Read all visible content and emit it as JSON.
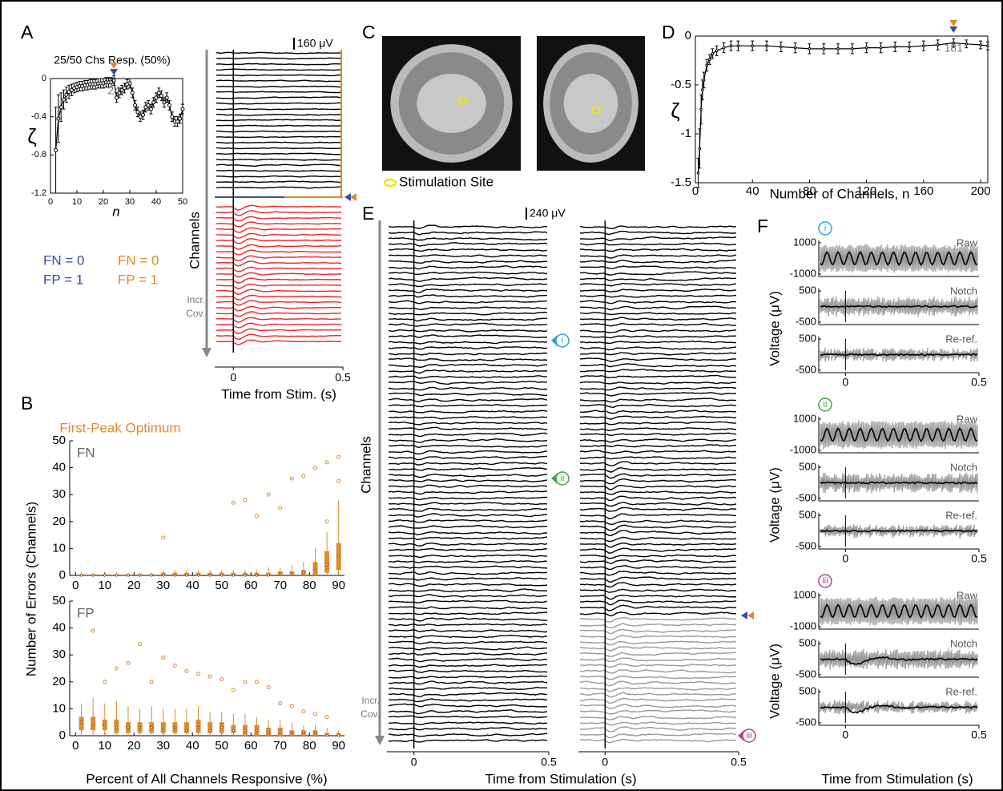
{
  "chart_data": [
    {
      "type": "line",
      "panel": "A",
      "title": "25/50 Chs Resp. (50%)",
      "x_label": "n",
      "y_label": "ζ",
      "x": [
        2,
        3,
        4,
        5,
        6,
        7,
        8,
        9,
        10,
        11,
        12,
        13,
        14,
        15,
        16,
        17,
        18,
        19,
        20,
        21,
        22,
        23,
        24,
        25,
        26,
        27,
        28,
        29,
        30,
        31,
        32,
        33,
        34,
        35,
        36,
        37,
        38,
        39,
        40,
        41,
        42,
        43,
        44,
        45,
        46,
        47,
        48,
        49,
        50
      ],
      "series": [
        {
          "color": "#000000",
          "values": [
            -0.75,
            -0.42,
            -0.3,
            -0.22,
            -0.17,
            -0.14,
            -0.12,
            -0.1,
            -0.09,
            -0.08,
            -0.08,
            -0.07,
            -0.07,
            -0.06,
            -0.06,
            -0.06,
            -0.05,
            -0.05,
            -0.05,
            -0.04,
            -0.04,
            -0.04,
            -0.02,
            -0.2,
            -0.15,
            -0.12,
            -0.1,
            -0.06,
            -0.05,
            -0.15,
            -0.28,
            -0.35,
            -0.4,
            -0.38,
            -0.3,
            -0.28,
            -0.32,
            -0.25,
            -0.2,
            -0.15,
            -0.18,
            -0.25,
            -0.2,
            -0.28,
            -0.4,
            -0.45,
            -0.45,
            -0.42,
            -0.32
          ],
          "errors": [
            0.45,
            0.25,
            0.15,
            0.1,
            0.08,
            0.07,
            0.06,
            0.05,
            0.05,
            0.05,
            0.05,
            0.05,
            0.05,
            0.05,
            0.05,
            0.05,
            0.05,
            0.05,
            0.05,
            0.05,
            0.05,
            0.05,
            0.05,
            0.05,
            0.05,
            0.05,
            0.05,
            0.05,
            0.05,
            0.05,
            0.05,
            0.05,
            0.05,
            0.05,
            0.05,
            0.05,
            0.05,
            0.05,
            0.05,
            0.05,
            0.05,
            0.05,
            0.05,
            0.05,
            0.05,
            0.05,
            0.05,
            0.05,
            0.05
          ]
        }
      ],
      "xlim": [
        0,
        50
      ],
      "xticks": [
        0,
        10,
        20,
        30,
        40,
        50
      ],
      "ylim": [
        -1.2,
        0
      ],
      "yticks": [
        -1.2,
        -0.8,
        -0.4,
        0
      ],
      "annotations": [
        {
          "text": "24",
          "x": 24
        }
      ],
      "marker_colors": [
        "#e08a2b",
        "#3a4fa0"
      ]
    },
    {
      "type": "traces",
      "panel": "A",
      "scale_label": "160 μV",
      "y_label": "Channels",
      "cov_label": [
        "Incr.",
        "Cov."
      ],
      "x_label": "Time from Stim. (s)",
      "xlim": [
        -0.085,
        0.5
      ],
      "xticks": [
        0,
        0.5
      ],
      "colors": [
        "#000000",
        "#e8262a"
      ],
      "marker_colors": [
        "#3a4fa0",
        "#e08a2b"
      ],
      "legend": [
        {
          "color": "#3a4fa0",
          "entries": [
            "FN = 0",
            "FP = 1"
          ]
        },
        {
          "color": "#e08a2b",
          "entries": [
            "FN = 0",
            "FP = 1"
          ]
        }
      ]
    },
    {
      "type": "box",
      "panel": "B",
      "title": "First-Peak Optimum",
      "x_label": "Percent of All Channels Responsive (%)",
      "y_label": "Number of Errors (Channels)",
      "color": "#e08a2b",
      "x": [
        2,
        6,
        10,
        14,
        18,
        22,
        26,
        30,
        34,
        38,
        42,
        46,
        50,
        54,
        58,
        62,
        66,
        70,
        74,
        78,
        82,
        86,
        90
      ],
      "xlim": [
        -2,
        92
      ],
      "xticks": [
        0,
        10,
        20,
        30,
        40,
        50,
        60,
        70,
        80,
        90
      ],
      "ylim": [
        0,
        50
      ],
      "yticks": [
        0,
        10,
        20,
        30,
        40,
        50
      ],
      "subplots": [
        {
          "label": "FN",
          "median": [
            0,
            0,
            0,
            0,
            0,
            0,
            0,
            0,
            0,
            0,
            0,
            0,
            0,
            0,
            0,
            0,
            0,
            0.5,
            0.5,
            1,
            2,
            4,
            7
          ],
          "q1": [
            0,
            0,
            0,
            0,
            0,
            0,
            0,
            0,
            0,
            0,
            0,
            0,
            0,
            0,
            0,
            0,
            0,
            0,
            0,
            0,
            0,
            1,
            2
          ],
          "q3": [
            0.5,
            0.5,
            0.5,
            0.5,
            0.5,
            0.5,
            0.5,
            1,
            1,
            1,
            1,
            1,
            1,
            1,
            1,
            1,
            1,
            1.5,
            1.5,
            2,
            5,
            9,
            12
          ],
          "whislo": [
            0,
            0,
            0,
            0,
            0,
            0,
            0,
            0,
            0,
            0,
            0,
            0,
            0,
            0,
            0,
            0,
            0,
            0,
            0,
            0,
            0,
            0,
            0
          ],
          "whishi": [
            1,
            1,
            1,
            1,
            1,
            1,
            1,
            2,
            2,
            2,
            2,
            2,
            2,
            2,
            2,
            2,
            3,
            3,
            4,
            5,
            10,
            16,
            28
          ],
          "outlier_x": [
            30,
            54,
            58,
            62,
            66,
            70,
            74,
            78,
            82,
            86,
            90,
            86,
            90
          ],
          "outlier_y": [
            14,
            27,
            28,
            22,
            30,
            25,
            36,
            37,
            40,
            42,
            44,
            20,
            35
          ]
        },
        {
          "label": "FP",
          "median": [
            5,
            4,
            4,
            3,
            3,
            3,
            3,
            2,
            3,
            2,
            3,
            2,
            3,
            2,
            2,
            2,
            1,
            1,
            1,
            1,
            1,
            0,
            0
          ],
          "q1": [
            2,
            2,
            2,
            1,
            1,
            1,
            1,
            1,
            1,
            1,
            1,
            1,
            1,
            1,
            0,
            0,
            0,
            0,
            0,
            0,
            0,
            0,
            0
          ],
          "q3": [
            7,
            7,
            6,
            6,
            5,
            5,
            5,
            5,
            5,
            5,
            6,
            5,
            5,
            4,
            4,
            4,
            3,
            3,
            2,
            2,
            2,
            1,
            1
          ],
          "whislo": [
            0,
            0,
            0,
            0,
            0,
            0,
            0,
            0,
            0,
            0,
            0,
            0,
            0,
            0,
            0,
            0,
            0,
            0,
            0,
            0,
            0,
            0,
            0
          ],
          "whishi": [
            12,
            14,
            12,
            13,
            11,
            10,
            11,
            10,
            10,
            10,
            11,
            9,
            9,
            8,
            8,
            7,
            6,
            6,
            5,
            4,
            4,
            3,
            2
          ],
          "outlier_x": [
            6,
            10,
            14,
            18,
            22,
            26,
            30,
            34,
            38,
            42,
            46,
            50,
            54,
            58,
            62,
            66,
            70,
            74,
            78,
            82,
            86
          ],
          "outlier_y": [
            39,
            20,
            25,
            27,
            34,
            20,
            29,
            26,
            24,
            23,
            22,
            21,
            17,
            20,
            20,
            18,
            12,
            11,
            9,
            8,
            7
          ]
        }
      ]
    },
    {
      "type": "image",
      "panel": "C",
      "caption": "Stimulation Site",
      "site_color": "#f2e600"
    },
    {
      "type": "line",
      "panel": "D",
      "x_label": "Number of Channels, n",
      "y_label": "ζ",
      "x": [
        2,
        3,
        4,
        5,
        6,
        8,
        10,
        12,
        15,
        20,
        25,
        30,
        40,
        50,
        60,
        70,
        80,
        90,
        100,
        110,
        120,
        130,
        140,
        150,
        160,
        170,
        181,
        190,
        200,
        205
      ],
      "series": [
        {
          "color": "#000000",
          "values": [
            -1.4,
            -1.15,
            -0.75,
            -0.55,
            -0.45,
            -0.3,
            -0.24,
            -0.18,
            -0.15,
            -0.12,
            -0.1,
            -0.1,
            -0.1,
            -0.1,
            -0.11,
            -0.12,
            -0.13,
            -0.13,
            -0.13,
            -0.13,
            -0.12,
            -0.12,
            -0.11,
            -0.11,
            -0.1,
            -0.09,
            -0.07,
            -0.08,
            -0.09,
            -0.1
          ],
          "errors": [
            0.15,
            0.2,
            0.15,
            0.1,
            0.08,
            0.06,
            0.05,
            0.05,
            0.05,
            0.05,
            0.05,
            0.05,
            0.05,
            0.05,
            0.05,
            0.05,
            0.05,
            0.05,
            0.05,
            0.05,
            0.05,
            0.05,
            0.05,
            0.05,
            0.05,
            0.05,
            0.04,
            0.04,
            0.04,
            0.04
          ]
        }
      ],
      "xlim": [
        0,
        205
      ],
      "xticks": [
        0,
        40,
        80,
        120,
        160,
        200
      ],
      "ylim": [
        -1.5,
        0
      ],
      "yticks": [
        -1.5,
        -1,
        -0.5,
        0
      ],
      "annotations": [
        {
          "text": "181",
          "x": 181
        }
      ],
      "marker_colors": [
        "#e08a2b",
        "#3a4fa0"
      ]
    },
    {
      "type": "traces",
      "panel": "E",
      "scale_label": "240 μV",
      "y_label": "Channels",
      "cov_label": [
        "Incr.",
        "Cov."
      ],
      "x_label": "Time from Stimulation (s)",
      "xlim": [
        -0.1,
        0.5
      ],
      "xticks": [
        0,
        0.5
      ],
      "colors": [
        "#000000",
        "#999999"
      ],
      "marker_colors": [
        "#3a4fa0",
        "#e08a2b"
      ],
      "markers": [
        {
          "label": "i",
          "color": "#2aa0dc"
        },
        {
          "label": "ii",
          "color": "#3aa845"
        },
        {
          "label": "iii",
          "color": "#a8449c"
        }
      ]
    },
    {
      "type": "multi",
      "panel": "F",
      "y_label": "Voltage (μV)",
      "x_label": "Time from Stimulation (s)",
      "xlim": [
        -0.1,
        0.5
      ],
      "xticks": [
        0,
        0.5
      ],
      "groups": [
        {
          "marker": "i",
          "color": "#2aa0dc",
          "plots": [
            {
              "label": "Raw",
              "ylim": [
                -1150,
                1150
              ],
              "yticks": [
                1000,
                -1000
              ]
            },
            {
              "label": "Notch",
              "ylim": [
                -580,
                580
              ],
              "yticks": [
                500,
                -500
              ]
            },
            {
              "label": "Re-ref.",
              "ylim": [
                -580,
                580
              ],
              "yticks": [
                500,
                -500
              ]
            }
          ]
        },
        {
          "marker": "ii",
          "color": "#3aa845",
          "plots": [
            {
              "label": "Raw",
              "ylim": [
                -1150,
                1150
              ],
              "yticks": [
                1000,
                -1000
              ]
            },
            {
              "label": "Notch",
              "ylim": [
                -580,
                580
              ],
              "yticks": [
                500,
                -500
              ]
            },
            {
              "label": "Re-ref.",
              "ylim": [
                -580,
                580
              ],
              "yticks": [
                500,
                -500
              ]
            }
          ]
        },
        {
          "marker": "iii",
          "color": "#a8449c",
          "plots": [
            {
              "label": "Raw",
              "ylim": [
                -1150,
                1150
              ],
              "yticks": [
                1000,
                -1000
              ]
            },
            {
              "label": "Notch",
              "ylim": [
                -580,
                580
              ],
              "yticks": [
                500,
                -500
              ]
            },
            {
              "label": "Re-ref.",
              "ylim": [
                -580,
                580
              ],
              "yticks": [
                500,
                -500
              ]
            }
          ]
        }
      ]
    }
  ]
}
